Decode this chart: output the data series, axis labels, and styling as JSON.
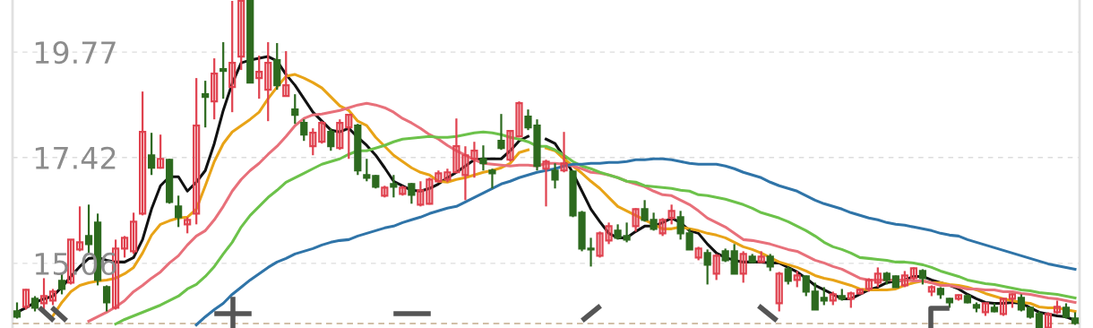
{
  "chart_data": {
    "type": "candlestick",
    "categories": [
      null,
      null,
      null,
      null,
      null,
      null,
      null,
      null,
      null,
      null,
      null,
      null,
      null,
      null,
      null,
      null,
      null,
      null,
      null,
      null,
      null,
      null,
      null,
      null,
      null,
      null,
      null,
      null,
      null,
      null,
      null,
      null,
      null,
      null,
      null,
      null,
      null,
      null,
      null,
      null,
      null,
      null,
      null,
      null,
      null,
      null,
      null,
      null,
      null,
      null,
      null,
      null,
      null,
      null,
      null,
      null,
      null,
      null,
      null,
      null,
      null,
      null,
      null,
      null,
      null,
      null,
      null,
      null,
      null,
      null,
      null,
      null,
      null,
      null,
      null,
      null,
      null,
      null,
      null,
      null,
      null,
      null,
      null,
      null,
      null,
      null,
      null,
      null,
      null,
      null,
      null,
      null,
      null,
      null,
      null,
      null,
      null,
      null,
      null,
      null,
      null,
      null,
      null,
      null,
      null,
      null,
      null,
      null,
      null,
      null,
      null,
      null,
      null,
      null,
      null,
      null,
      null,
      null,
      null
    ],
    "ohlc": [
      [
        13.99,
        14.19,
        13.83,
        13.87
      ],
      [
        14.09,
        14.49,
        14.03,
        14.47
      ],
      [
        14.27,
        14.33,
        13.99,
        14.07
      ],
      [
        14.17,
        14.73,
        13.99,
        14.33
      ],
      [
        14.23,
        14.49,
        14.13,
        14.43
      ],
      [
        14.67,
        14.83,
        14.37,
        14.49
      ],
      [
        14.63,
        15.59,
        14.59,
        15.59
      ],
      [
        15.37,
        16.33,
        15.33,
        15.53
      ],
      [
        15.67,
        16.37,
        15.27,
        15.49
      ],
      [
        15.97,
        16.17,
        14.57,
        14.69
      ],
      [
        14.53,
        14.57,
        13.99,
        14.19
      ],
      [
        14.07,
        15.59,
        14.03,
        15.39
      ],
      [
        15.39,
        15.67,
        15.19,
        15.63
      ],
      [
        15.33,
        16.19,
        15.27,
        15.99
      ],
      [
        16.17,
        18.89,
        16.13,
        17.99
      ],
      [
        17.47,
        17.97,
        17.03,
        17.19
      ],
      [
        17.19,
        17.93,
        17.17,
        17.39
      ],
      [
        17.37,
        17.39,
        16.39,
        16.43
      ],
      [
        16.33,
        16.57,
        15.87,
        16.09
      ],
      [
        15.93,
        16.09,
        15.73,
        16.03
      ],
      [
        16.17,
        19.19,
        15.93,
        18.13
      ],
      [
        18.83,
        19.13,
        18.09,
        18.77
      ],
      [
        18.67,
        19.63,
        18.27,
        19.29
      ],
      [
        19.39,
        19.99,
        18.73,
        19.35
      ],
      [
        18.99,
        20.91,
        18.43,
        19.53
      ],
      [
        19.67,
        20.91,
        19.37,
        20.91
      ],
      [
        20.91,
        20.91,
        19.09,
        19.09
      ],
      [
        19.19,
        19.69,
        18.73,
        19.33
      ],
      [
        18.93,
        19.99,
        18.23,
        19.53
      ],
      [
        19.59,
        19.97,
        18.93,
        19.03
      ],
      [
        18.79,
        19.79,
        18.79,
        19.03
      ],
      [
        18.49,
        18.83,
        18.17,
        18.37
      ],
      [
        18.19,
        18.27,
        17.79,
        17.93
      ],
      [
        17.67,
        18.07,
        17.47,
        17.97
      ],
      [
        17.77,
        18.23,
        17.73,
        18.19
      ],
      [
        17.99,
        18.07,
        17.57,
        17.67
      ],
      [
        17.63,
        18.27,
        17.59,
        18.19
      ],
      [
        18.09,
        18.39,
        17.39,
        18.37
      ],
      [
        18.13,
        18.17,
        17.03,
        17.13
      ],
      [
        17.03,
        17.39,
        16.89,
        16.97
      ],
      [
        17.01,
        17.03,
        16.73,
        16.77
      ],
      [
        16.57,
        16.79,
        16.53,
        16.75
      ],
      [
        16.83,
        17.03,
        16.53,
        16.77
      ],
      [
        16.61,
        16.79,
        16.57,
        16.75
      ],
      [
        16.83,
        16.85,
        16.39,
        16.59
      ],
      [
        16.37,
        16.89,
        16.33,
        16.69
      ],
      [
        16.39,
        16.97,
        16.37,
        16.93
      ],
      [
        16.89,
        17.13,
        16.87,
        17.07
      ],
      [
        16.93,
        17.17,
        16.87,
        17.09
      ],
      [
        17.09,
        18.29,
        17.07,
        17.67
      ],
      [
        17.03,
        17.67,
        16.47,
        17.47
      ],
      [
        17.39,
        17.77,
        16.97,
        17.57
      ],
      [
        17.39,
        17.69,
        17.13,
        17.29
      ],
      [
        17.13,
        17.17,
        16.73,
        17.07
      ],
      [
        17.79,
        18.39,
        17.59,
        17.63
      ],
      [
        17.37,
        18.03,
        17.33,
        18.01
      ],
      [
        17.89,
        18.67,
        17.87,
        18.63
      ],
      [
        18.33,
        18.49,
        18.03,
        18.09
      ],
      [
        18.13,
        18.27,
        17.13,
        17.23
      ],
      [
        17.17,
        17.37,
        16.33,
        17.33
      ],
      [
        17.13,
        17.29,
        16.73,
        16.93
      ],
      [
        17.13,
        17.99,
        17.09,
        17.29
      ],
      [
        17.11,
        17.13,
        16.09,
        16.13
      ],
      [
        16.19,
        16.23,
        15.33,
        15.39
      ],
      [
        15.39,
        15.63,
        14.99,
        15.37
      ],
      [
        15.23,
        15.77,
        15.19,
        15.73
      ],
      [
        15.57,
        15.97,
        15.49,
        15.89
      ],
      [
        15.79,
        15.93,
        15.59,
        15.63
      ],
      [
        15.67,
        15.97,
        15.53,
        15.59
      ],
      [
        15.89,
        16.29,
        15.77,
        16.27
      ],
      [
        16.27,
        16.47,
        15.99,
        16.03
      ],
      [
        16.03,
        16.19,
        15.79,
        15.83
      ],
      [
        15.73,
        16.07,
        15.67,
        16.03
      ],
      [
        16.07,
        16.37,
        15.93,
        16.23
      ],
      [
        16.09,
        16.23,
        15.59,
        15.73
      ],
      [
        15.73,
        15.83,
        15.37,
        15.37
      ],
      [
        15.19,
        15.43,
        15.13,
        15.39
      ],
      [
        15.29,
        15.37,
        14.59,
        15.03
      ],
      [
        14.83,
        15.27,
        14.69,
        15.23
      ],
      [
        15.33,
        15.39,
        15.09,
        15.13
      ],
      [
        15.33,
        15.49,
        14.83,
        14.83
      ],
      [
        14.83,
        15.33,
        14.63,
        15.27
      ],
      [
        15.21,
        15.27,
        15.07,
        15.09
      ],
      [
        15.09,
        15.33,
        15.07,
        15.21
      ],
      [
        15.21,
        15.27,
        14.89,
        14.99
      ],
      [
        14.17,
        14.87,
        13.99,
        14.83
      ],
      [
        14.93,
        14.99,
        14.59,
        14.67
      ],
      [
        14.69,
        14.89,
        14.53,
        14.79
      ],
      [
        14.77,
        14.79,
        14.33,
        14.43
      ],
      [
        14.43,
        14.63,
        14.03,
        14.03
      ],
      [
        14.29,
        14.53,
        14.13,
        14.23
      ],
      [
        14.23,
        14.43,
        14.13,
        14.37
      ],
      [
        14.33,
        14.49,
        14.23,
        14.27
      ],
      [
        14.27,
        14.43,
        14.07,
        14.39
      ],
      [
        14.39,
        14.49,
        14.37,
        14.47
      ],
      [
        14.49,
        14.73,
        14.43,
        14.69
      ],
      [
        14.63,
        14.97,
        14.53,
        14.83
      ],
      [
        14.83,
        14.87,
        14.59,
        14.69
      ],
      [
        14.77,
        14.79,
        14.53,
        14.53
      ],
      [
        14.57,
        14.89,
        14.53,
        14.79
      ],
      [
        14.73,
        14.97,
        14.69,
        14.95
      ],
      [
        14.89,
        14.93,
        14.59,
        14.73
      ],
      [
        14.43,
        14.57,
        14.33,
        14.53
      ],
      [
        14.49,
        14.53,
        14.27,
        14.37
      ],
      [
        14.27,
        14.29,
        14.07,
        14.19
      ],
      [
        14.27,
        14.37,
        14.23,
        14.35
      ],
      [
        14.33,
        14.37,
        14.17,
        14.19
      ],
      [
        14.13,
        14.19,
        13.97,
        14.07
      ],
      [
        13.97,
        14.19,
        13.89,
        14.17
      ],
      [
        14.07,
        14.17,
        13.97,
        13.99
      ],
      [
        13.93,
        14.29,
        13.89,
        14.27
      ],
      [
        14.27,
        14.39,
        14.07,
        14.37
      ],
      [
        14.29,
        14.37,
        13.99,
        14.03
      ],
      [
        14.07,
        14.09,
        13.83,
        13.87
      ],
      [
        13.93,
        13.99,
        13.63,
        13.63
      ],
      [
        13.63,
        13.97,
        13.63,
        13.93
      ],
      [
        13.97,
        14.23,
        13.93,
        14.09
      ],
      [
        14.07,
        14.17,
        13.83,
        13.87
      ],
      [
        13.83,
        13.97,
        13.69,
        13.73
      ]
    ],
    "colors": [
      "#2d6a1f",
      "#e0424f",
      "#2d6a1f",
      "#e0424f",
      "#e0424f",
      "#2d6a1f",
      "#e0424f",
      "#e0424f",
      "#2d6a1f",
      "#2d6a1f",
      "#2d6a1f",
      "#e0424f",
      "#e0424f",
      "#e0424f",
      "#e0424f",
      "#2d6a1f",
      "#e0424f",
      "#2d6a1f",
      "#2d6a1f",
      "#e0424f",
      "#e0424f",
      "#2d6a1f",
      "#e0424f",
      "#2d6a1f",
      "#e0424f",
      "#e0424f",
      "#2d6a1f",
      "#e0424f",
      "#e0424f",
      "#2d6a1f",
      "#e0424f",
      "#2d6a1f",
      "#2d6a1f",
      "#e0424f",
      "#e0424f",
      "#2d6a1f",
      "#e0424f",
      "#e0424f",
      "#2d6a1f",
      "#2d6a1f",
      "#2d6a1f",
      "#e0424f",
      "#2d6a1f",
      "#e0424f",
      "#2d6a1f",
      "#e0424f",
      "#e0424f",
      "#e0424f",
      "#e0424f",
      "#e0424f",
      "#e0424f",
      "#e0424f",
      "#2d6a1f",
      "#2d6a1f",
      "#2d6a1f",
      "#e0424f",
      "#e0424f",
      "#2d6a1f",
      "#2d6a1f",
      "#e0424f",
      "#2d6a1f",
      "#e0424f",
      "#2d6a1f",
      "#2d6a1f",
      "#2d6a1f",
      "#e0424f",
      "#e0424f",
      "#2d6a1f",
      "#2d6a1f",
      "#e0424f",
      "#2d6a1f",
      "#2d6a1f",
      "#e0424f",
      "#e0424f",
      "#2d6a1f",
      "#2d6a1f",
      "#e0424f",
      "#2d6a1f",
      "#e0424f",
      "#2d6a1f",
      "#2d6a1f",
      "#e0424f",
      "#2d6a1f",
      "#e0424f",
      "#2d6a1f",
      "#e0424f",
      "#2d6a1f",
      "#e0424f",
      "#2d6a1f",
      "#2d6a1f",
      "#2d6a1f",
      "#e0424f",
      "#2d6a1f",
      "#e0424f",
      "#e0424f",
      "#e0424f",
      "#e0424f",
      "#2d6a1f",
      "#2d6a1f",
      "#e0424f",
      "#e0424f",
      "#2d6a1f",
      "#e0424f",
      "#2d6a1f",
      "#2d6a1f",
      "#e0424f",
      "#2d6a1f",
      "#2d6a1f",
      "#e0424f",
      "#2d6a1f",
      "#e0424f",
      "#e0424f",
      "#2d6a1f",
      "#2d6a1f",
      "#2d6a1f",
      "#e0424f",
      "#e0424f",
      "#2d6a1f",
      "#2d6a1f"
    ],
    "series": [
      {
        "type": "line",
        "color": "#111111",
        "values": [
          13.97,
          14.07,
          14.19,
          14.27,
          14.33,
          14.53,
          14.77,
          14.99,
          15.17,
          15.19,
          15.13,
          15.09,
          15.09,
          15.19,
          15.59,
          16.27,
          16.79,
          16.99,
          16.99,
          16.67,
          16.87,
          17.13,
          17.73,
          18.47,
          19.07,
          19.53,
          19.59,
          19.63,
          19.67,
          19.57,
          19.27,
          19.03,
          18.73,
          18.43,
          18.23,
          18.03,
          17.99,
          18.07,
          17.87,
          17.69,
          17.47,
          17.19,
          16.89,
          16.79,
          16.69,
          16.67,
          16.73,
          16.83,
          16.97,
          17.09,
          17.23,
          17.37,
          17.39,
          17.39,
          17.39,
          17.57,
          17.79,
          17.89,
          null,
          17.83,
          17.73,
          17.43,
          17.07,
          16.67,
          16.27,
          15.99,
          15.73,
          15.63,
          15.63,
          15.77,
          15.89,
          15.89,
          15.97,
          16.07,
          15.97,
          15.79,
          15.73,
          15.49,
          15.29,
          15.19,
          15.13,
          15.09,
          15.09,
          15.09,
          15.07,
          15.07,
          14.97,
          14.87,
          14.73,
          14.57,
          14.47,
          14.37,
          14.27,
          14.27,
          14.37,
          14.47,
          14.53,
          14.63,
          14.67,
          14.69,
          14.77,
          14.77,
          14.69,
          14.63,
          14.57,
          14.49,
          14.37,
          14.27,
          14.19,
          14.17,
          14.17,
          14.19,
          14.17,
          14.07,
          13.97,
          13.93,
          13.89,
          13.87,
          13.79
        ]
      },
      {
        "type": "line",
        "color": "#e8a317",
        "values": [
          null,
          null,
          null,
          null,
          13.89,
          14.19,
          14.43,
          14.57,
          14.63,
          14.67,
          14.69,
          14.73,
          14.83,
          14.97,
          15.29,
          15.69,
          15.93,
          16.01,
          16.07,
          16.09,
          16.27,
          16.79,
          17.33,
          17.73,
          17.99,
          18.13,
          18.27,
          18.43,
          18.73,
          18.99,
          19.23,
          19.27,
          19.19,
          19.09,
          18.97,
          18.77,
          18.57,
          18.47,
          18.23,
          18.13,
          17.87,
          17.67,
          17.47,
          17.33,
          17.19,
          17.09,
          17.03,
          16.89,
          16.87,
          16.93,
          16.97,
          17.03,
          17.09,
          17.13,
          17.19,
          17.29,
          17.53,
          17.59,
          null,
          17.63,
          17.57,
          17.39,
          17.23,
          17.07,
          16.89,
          16.73,
          16.53,
          16.33,
          16.23,
          16.13,
          16.03,
          15.93,
          15.83,
          15.83,
          15.87,
          15.83,
          15.79,
          15.73,
          15.69,
          15.63,
          15.53,
          15.43,
          15.37,
          15.29,
          15.19,
          15.09,
          15.03,
          14.97,
          14.89,
          14.79,
          14.73,
          14.69,
          14.63,
          14.57,
          14.49,
          14.47,
          14.47,
          14.47,
          14.49,
          14.57,
          14.63,
          14.67,
          14.63,
          14.63,
          14.59,
          14.57,
          14.53,
          14.47,
          14.39,
          14.33,
          14.27,
          14.23,
          14.19,
          14.17,
          14.09,
          14.07,
          14.07,
          14.03,
          13.99
        ]
      },
      {
        "type": "line",
        "color": "#e8707a",
        "values": [
          null,
          null,
          null,
          null,
          null,
          null,
          null,
          null,
          13.77,
          13.87,
          13.97,
          14.09,
          14.23,
          14.43,
          14.57,
          14.73,
          14.87,
          15.07,
          15.23,
          15.47,
          15.67,
          15.79,
          16.03,
          16.33,
          16.67,
          16.93,
          17.13,
          17.29,
          17.49,
          17.67,
          17.89,
          18.13,
          18.29,
          18.37,
          18.39,
          18.43,
          18.47,
          18.53,
          18.59,
          18.63,
          18.59,
          18.53,
          18.43,
          18.29,
          18.19,
          18.07,
          17.93,
          17.83,
          17.69,
          17.57,
          17.47,
          17.37,
          17.29,
          17.27,
          17.25,
          17.23,
          17.25,
          17.25,
          17.23,
          17.29,
          17.29,
          17.27,
          17.23,
          17.17,
          17.09,
          17.07,
          17.03,
          16.97,
          16.89,
          16.83,
          16.77,
          16.67,
          16.59,
          16.57,
          16.47,
          16.37,
          16.23,
          16.07,
          15.97,
          15.87,
          15.73,
          15.59,
          15.57,
          15.53,
          15.49,
          15.43,
          15.37,
          15.33,
          15.23,
          15.13,
          15.07,
          14.99,
          14.93,
          14.83,
          14.73,
          14.69,
          14.69,
          14.69,
          14.69,
          14.69,
          14.67,
          14.67,
          14.63,
          14.57,
          14.57,
          14.53,
          14.49,
          14.49,
          14.47,
          14.47,
          14.43,
          14.43,
          14.39,
          14.37,
          14.33,
          14.29,
          14.27,
          14.23,
          14.19
        ]
      },
      {
        "type": "line",
        "color": "#6cc24a",
        "values": [
          null,
          null,
          null,
          null,
          null,
          null,
          null,
          null,
          null,
          null,
          null,
          13.71,
          13.81,
          13.89,
          13.97,
          14.05,
          14.13,
          14.23,
          14.33,
          14.49,
          14.59,
          14.77,
          14.99,
          15.27,
          15.53,
          15.87,
          16.13,
          16.33,
          16.53,
          16.69,
          16.87,
          16.97,
          17.07,
          17.17,
          17.27,
          17.33,
          17.39,
          17.49,
          17.57,
          17.57,
          17.63,
          17.69,
          17.77,
          17.83,
          17.85,
          17.87,
          17.89,
          17.87,
          17.87,
          17.89,
          17.93,
          17.97,
          17.99,
          17.97,
          17.93,
          17.87,
          17.83,
          17.77,
          17.67,
          17.67,
          17.59,
          17.47,
          17.33,
          17.23,
          17.17,
          17.09,
          17.03,
          16.97,
          16.89,
          16.87,
          16.79,
          16.77,
          16.75,
          16.73,
          16.69,
          16.67,
          16.59,
          16.57,
          16.53,
          16.49,
          16.43,
          16.37,
          16.29,
          16.19,
          16.13,
          16.07,
          15.99,
          15.89,
          15.79,
          15.67,
          15.53,
          15.43,
          15.37,
          15.29,
          15.19,
          15.17,
          15.15,
          15.13,
          15.09,
          15.09,
          15.07,
          15.03,
          14.97,
          14.89,
          14.83,
          14.77,
          14.69,
          14.65,
          14.61,
          14.59,
          14.55,
          14.51,
          14.47,
          14.45,
          14.41,
          14.39,
          14.37,
          14.33,
          14.29
        ]
      },
      {
        "type": "line",
        "color": "#2f74a8",
        "values": [
          null,
          null,
          null,
          null,
          null,
          null,
          null,
          null,
          null,
          null,
          null,
          null,
          null,
          null,
          null,
          null,
          null,
          null,
          null,
          null,
          13.69,
          13.87,
          14.03,
          14.17,
          14.37,
          14.53,
          14.69,
          14.83,
          14.97,
          15.09,
          15.17,
          15.27,
          15.33,
          15.39,
          15.47,
          15.53,
          15.57,
          15.59,
          15.67,
          15.73,
          15.79,
          15.85,
          15.89,
          15.97,
          16.03,
          16.09,
          16.17,
          16.23,
          16.29,
          16.33,
          16.43,
          16.53,
          16.63,
          16.73,
          16.83,
          16.89,
          16.97,
          17.03,
          17.09,
          17.13,
          17.17,
          17.23,
          17.27,
          17.27,
          17.29,
          17.29,
          17.31,
          17.31,
          17.33,
          17.37,
          17.37,
          17.39,
          17.39,
          17.37,
          17.33,
          17.29,
          17.27,
          17.27,
          17.27,
          17.23,
          17.17,
          17.09,
          17.03,
          16.97,
          16.87,
          16.79,
          16.73,
          16.67,
          16.57,
          16.47,
          16.39,
          16.33,
          16.27,
          16.19,
          16.13,
          16.07,
          16.03,
          15.97,
          15.93,
          15.91,
          15.87,
          15.83,
          15.79,
          15.73,
          15.69,
          15.67,
          15.59,
          15.53,
          15.47,
          15.41,
          15.35,
          15.29,
          15.23,
          15.17,
          15.11,
          15.05,
          15.01,
          14.97,
          14.93
        ]
      }
    ],
    "ylim": [
      13.62,
      20.93
    ],
    "yticks": [
      15.06,
      17.42,
      19.77
    ],
    "ref_lines": [
      {
        "axis": "y",
        "value": 13.72,
        "color": "#c2ab8a",
        "line_style": "dashed"
      }
    ],
    "grid": "y",
    "tick_labels": "y"
  }
}
